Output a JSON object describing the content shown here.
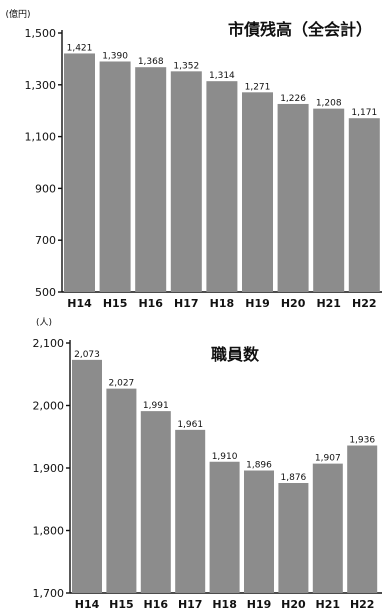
{
  "chart_data": [
    {
      "type": "bar",
      "title": "市債残高（全会計）",
      "unit": "(億円)",
      "categories": [
        "H14",
        "H15",
        "H16",
        "H17",
        "H18",
        "H19",
        "H20",
        "H21",
        "H22"
      ],
      "values": [
        1421,
        1390,
        1368,
        1352,
        1314,
        1271,
        1226,
        1208,
        1171
      ],
      "value_labels": [
        "1,421",
        "1,390",
        "1,368",
        "1,352",
        "1,314",
        "1,271",
        "1,226",
        "1,208",
        "1,171"
      ],
      "ylim": [
        500,
        1500
      ],
      "yticks": [
        500,
        700,
        900,
        1100,
        1300,
        1500
      ],
      "ytick_labels": [
        "500",
        "700",
        "900",
        "1,100",
        "1,300",
        "1,500"
      ],
      "bar_color": "#8c8c8c",
      "grid": false,
      "legend": "none"
    },
    {
      "type": "bar",
      "title": "職員数",
      "unit": "(人)",
      "categories": [
        "H14",
        "H15",
        "H16",
        "H17",
        "H18",
        "H19",
        "H20",
        "H21",
        "H22"
      ],
      "values": [
        2073,
        2027,
        1991,
        1961,
        1910,
        1896,
        1876,
        1907,
        1936
      ],
      "value_labels": [
        "2,073",
        "2,027",
        "1,991",
        "1,961",
        "1,910",
        "1,896",
        "1,876",
        "1,907",
        "1,936"
      ],
      "ylim": [
        1700,
        2100
      ],
      "yticks": [
        1700,
        1800,
        1900,
        2000,
        2100
      ],
      "ytick_labels": [
        "1,700",
        "1,800",
        "1,900",
        "2,000",
        "2,100"
      ],
      "bar_color": "#8c8c8c",
      "grid": false,
      "legend": "none"
    }
  ]
}
